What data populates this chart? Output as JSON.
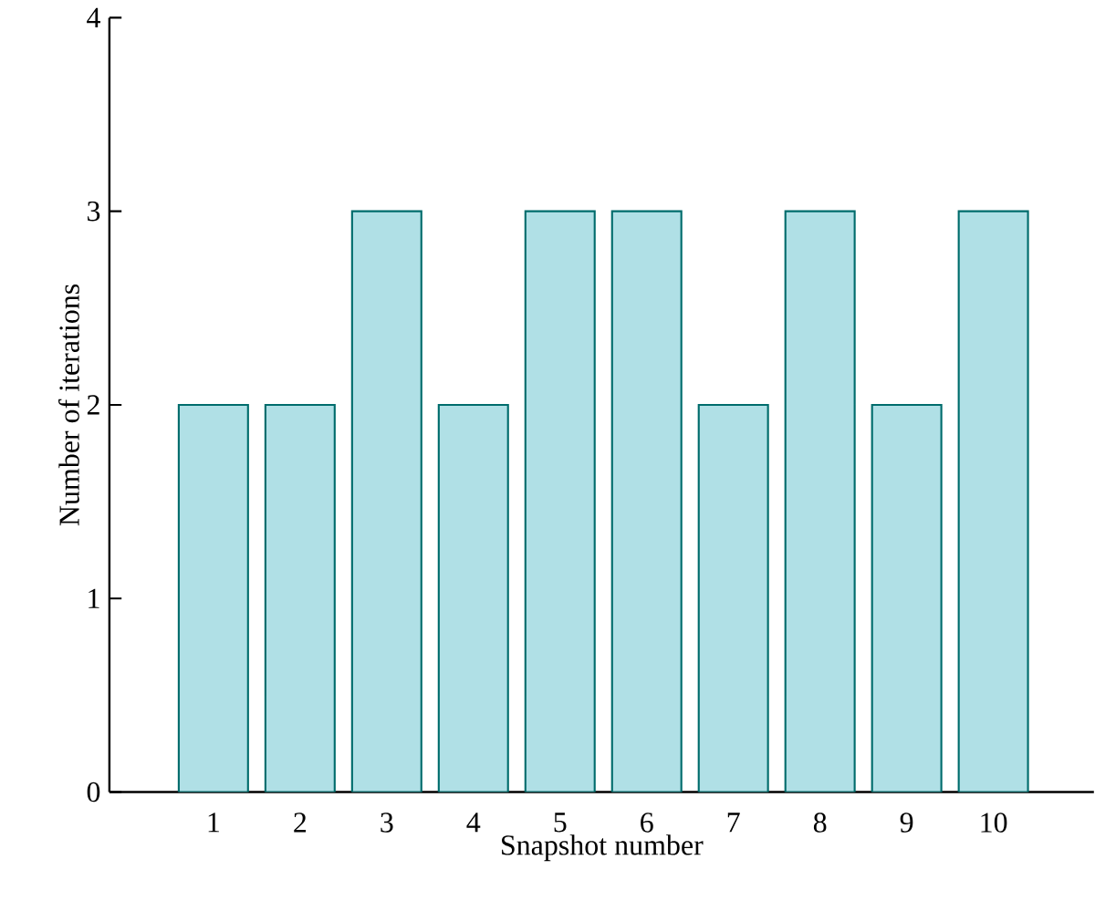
{
  "chart_data": {
    "type": "bar",
    "xlabel": "Snapshot number",
    "ylabel": "Number of iterations",
    "categories": [
      "1",
      "2",
      "3",
      "4",
      "5",
      "6",
      "7",
      "8",
      "9",
      "10"
    ],
    "values": [
      2,
      2,
      3,
      2,
      3,
      3,
      2,
      3,
      2,
      3
    ],
    "color": "#b0e0e6",
    "ylim": [
      0,
      4
    ],
    "yticks": [
      0,
      1,
      2,
      3,
      4
    ],
    "grid": false
  }
}
